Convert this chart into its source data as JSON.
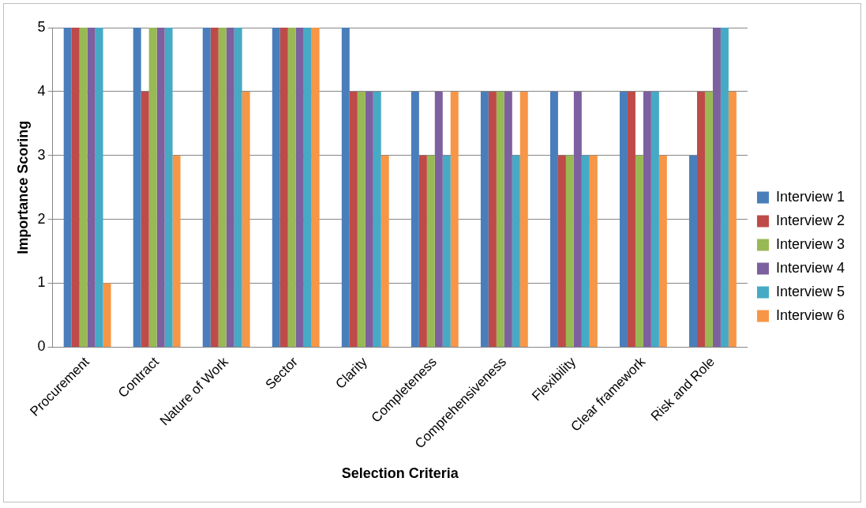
{
  "chart_data": {
    "type": "bar",
    "xlabel": "Selection Criteria",
    "ylabel": "Importance Scoring",
    "categories": [
      "Procurement",
      "Contract",
      "Nature of Work",
      "Sector",
      "Clarity",
      "Completeness",
      "Comprehensiveness",
      "Flexibility",
      "Clear framework",
      "Risk and Role"
    ],
    "series": [
      {
        "name": "Interview 1",
        "color": "#4a7ebb",
        "values": [
          5,
          5,
          5,
          5,
          5,
          4,
          4,
          4,
          4,
          3
        ]
      },
      {
        "name": "Interview 2",
        "color": "#be4b48",
        "values": [
          5,
          4,
          5,
          5,
          4,
          3,
          4,
          3,
          4,
          4
        ]
      },
      {
        "name": "Interview 3",
        "color": "#98b954",
        "values": [
          5,
          5,
          5,
          5,
          4,
          3,
          4,
          3,
          3,
          4
        ]
      },
      {
        "name": "Interview 4",
        "color": "#7d60a0",
        "values": [
          5,
          5,
          5,
          5,
          4,
          4,
          4,
          4,
          4,
          5
        ]
      },
      {
        "name": "Interview 5",
        "color": "#46aac5",
        "values": [
          5,
          5,
          5,
          5,
          4,
          3,
          3,
          3,
          4,
          5
        ]
      },
      {
        "name": "Interview 6",
        "color": "#f79646",
        "values": [
          1,
          3,
          4,
          5,
          3,
          4,
          4,
          3,
          3,
          4
        ]
      }
    ],
    "ylim": [
      0,
      5
    ],
    "yticks": [
      0,
      1,
      2,
      3,
      4,
      5
    ],
    "grid": "y",
    "legend": "right"
  }
}
